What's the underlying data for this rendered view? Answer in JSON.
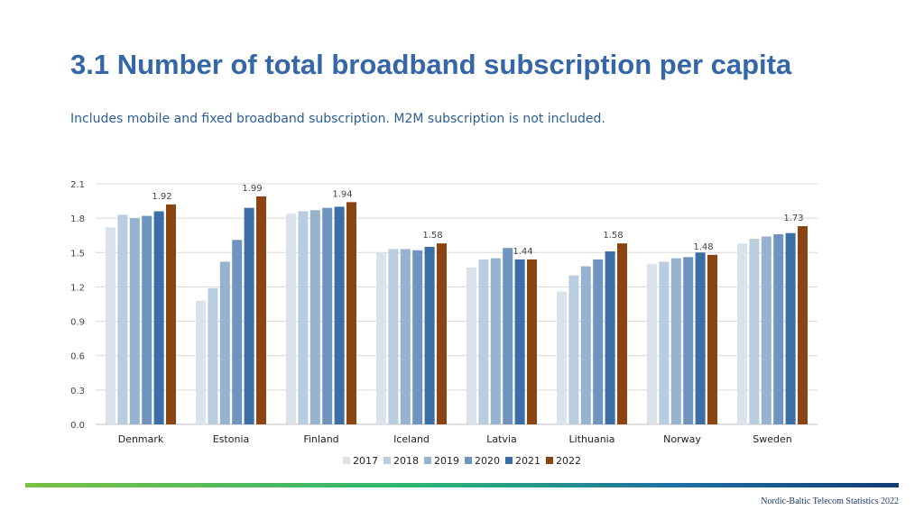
{
  "header": {
    "title": "3.1 Number of total broadband subscription per capita",
    "subtitle": "Includes mobile and fixed broadband subscription. M2M subscription is not included."
  },
  "footer": {
    "text": "Nordic-Baltic Telecom Statistics 2022"
  },
  "colors": {
    "2017": "#dbe3ea",
    "2018": "#b9cde0",
    "2019": "#95b2cf",
    "2020": "#6f94bf",
    "2021": "#3a6ea5",
    "2022": "#8b4513",
    "grid": "#d9d9d9"
  },
  "chart_data": {
    "type": "bar",
    "categories": [
      "Denmark",
      "Estonia",
      "Finland",
      "Iceland",
      "Latvia",
      "Lithuania",
      "Norway",
      "Sweden"
    ],
    "series": [
      {
        "name": "2017",
        "values": [
          1.72,
          1.08,
          1.84,
          1.5,
          1.37,
          1.16,
          1.4,
          1.58
        ]
      },
      {
        "name": "2018",
        "values": [
          1.83,
          1.19,
          1.86,
          1.53,
          1.44,
          1.3,
          1.42,
          1.62
        ]
      },
      {
        "name": "2019",
        "values": [
          1.8,
          1.42,
          1.87,
          1.53,
          1.45,
          1.38,
          1.45,
          1.64
        ]
      },
      {
        "name": "2020",
        "values": [
          1.82,
          1.61,
          1.89,
          1.52,
          1.54,
          1.44,
          1.46,
          1.66
        ]
      },
      {
        "name": "2021",
        "values": [
          1.86,
          1.89,
          1.9,
          1.55,
          1.44,
          1.51,
          1.5,
          1.67
        ]
      },
      {
        "name": "2022",
        "values": [
          1.92,
          1.99,
          1.94,
          1.58,
          1.44,
          1.58,
          1.48,
          1.73
        ]
      }
    ],
    "data_labels": [
      "1.92",
      "1.99",
      "1.94",
      "1.58",
      "1.44",
      "1.58",
      "1.48",
      "1.73"
    ],
    "yticks": [
      "0.0",
      "0.3",
      "0.6",
      "0.9",
      "1.2",
      "1.5",
      "1.8",
      "2.1"
    ],
    "ylim": [
      0,
      2.1
    ],
    "grid": true,
    "legend_position": "bottom"
  }
}
